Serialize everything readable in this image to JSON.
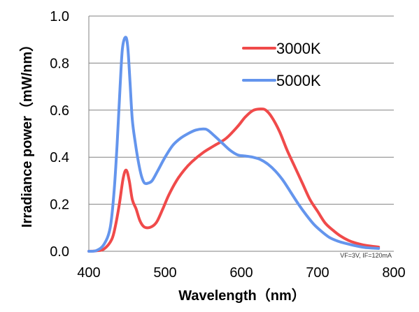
{
  "chart_data": {
    "type": "line",
    "title": "",
    "xlabel": "Wavelength（nm）",
    "ylabel": "Irradiance power（mW/nm）",
    "xlim": [
      400,
      800
    ],
    "ylim": [
      0.0,
      1.0
    ],
    "x_ticks": [
      "400",
      "500",
      "600",
      "700",
      "800"
    ],
    "y_ticks": [
      "0.0",
      "0.2",
      "0.4",
      "0.6",
      "0.8",
      "1.0"
    ],
    "grid": "horizontal",
    "legend": "top-right",
    "note": "VF=3V, IF=120mA",
    "series": [
      {
        "name": "3000K",
        "color": "#f04a4a",
        "points": [
          [
            400,
            0.0
          ],
          [
            410,
            0.002
          ],
          [
            420,
            0.01
          ],
          [
            430,
            0.05
          ],
          [
            435,
            0.11
          ],
          [
            440,
            0.2
          ],
          [
            445,
            0.31
          ],
          [
            449,
            0.345
          ],
          [
            453,
            0.3
          ],
          [
            457,
            0.22
          ],
          [
            462,
            0.18
          ],
          [
            467,
            0.13
          ],
          [
            472,
            0.105
          ],
          [
            478,
            0.1
          ],
          [
            485,
            0.11
          ],
          [
            490,
            0.13
          ],
          [
            497,
            0.18
          ],
          [
            505,
            0.24
          ],
          [
            515,
            0.3
          ],
          [
            525,
            0.345
          ],
          [
            535,
            0.38
          ],
          [
            550,
            0.42
          ],
          [
            565,
            0.45
          ],
          [
            580,
            0.48
          ],
          [
            595,
            0.53
          ],
          [
            605,
            0.57
          ],
          [
            615,
            0.598
          ],
          [
            625,
            0.605
          ],
          [
            632,
            0.6
          ],
          [
            640,
            0.57
          ],
          [
            650,
            0.51
          ],
          [
            660,
            0.43
          ],
          [
            670,
            0.36
          ],
          [
            680,
            0.29
          ],
          [
            690,
            0.22
          ],
          [
            700,
            0.17
          ],
          [
            710,
            0.12
          ],
          [
            720,
            0.09
          ],
          [
            730,
            0.065
          ],
          [
            740,
            0.047
          ],
          [
            750,
            0.035
          ],
          [
            760,
            0.027
          ],
          [
            770,
            0.022
          ],
          [
            780,
            0.018
          ]
        ]
      },
      {
        "name": "5000K",
        "color": "#6495ed",
        "points": [
          [
            400,
            0.0
          ],
          [
            410,
            0.003
          ],
          [
            420,
            0.03
          ],
          [
            428,
            0.1
          ],
          [
            433,
            0.25
          ],
          [
            437,
            0.45
          ],
          [
            441,
            0.7
          ],
          [
            444,
            0.86
          ],
          [
            448,
            0.91
          ],
          [
            451,
            0.87
          ],
          [
            454,
            0.72
          ],
          [
            457,
            0.56
          ],
          [
            461,
            0.46
          ],
          [
            465,
            0.38
          ],
          [
            469,
            0.32
          ],
          [
            473,
            0.29
          ],
          [
            478,
            0.29
          ],
          [
            483,
            0.3
          ],
          [
            490,
            0.34
          ],
          [
            500,
            0.4
          ],
          [
            510,
            0.45
          ],
          [
            520,
            0.48
          ],
          [
            530,
            0.5
          ],
          [
            540,
            0.515
          ],
          [
            550,
            0.52
          ],
          [
            556,
            0.515
          ],
          [
            565,
            0.49
          ],
          [
            575,
            0.46
          ],
          [
            585,
            0.43
          ],
          [
            595,
            0.41
          ],
          [
            605,
            0.405
          ],
          [
            615,
            0.4
          ],
          [
            625,
            0.39
          ],
          [
            635,
            0.37
          ],
          [
            645,
            0.34
          ],
          [
            655,
            0.3
          ],
          [
            665,
            0.25
          ],
          [
            675,
            0.2
          ],
          [
            685,
            0.155
          ],
          [
            695,
            0.115
          ],
          [
            705,
            0.085
          ],
          [
            715,
            0.06
          ],
          [
            725,
            0.045
          ],
          [
            735,
            0.035
          ],
          [
            745,
            0.027
          ],
          [
            755,
            0.02
          ],
          [
            765,
            0.015
          ],
          [
            780,
            0.012
          ]
        ]
      }
    ]
  }
}
